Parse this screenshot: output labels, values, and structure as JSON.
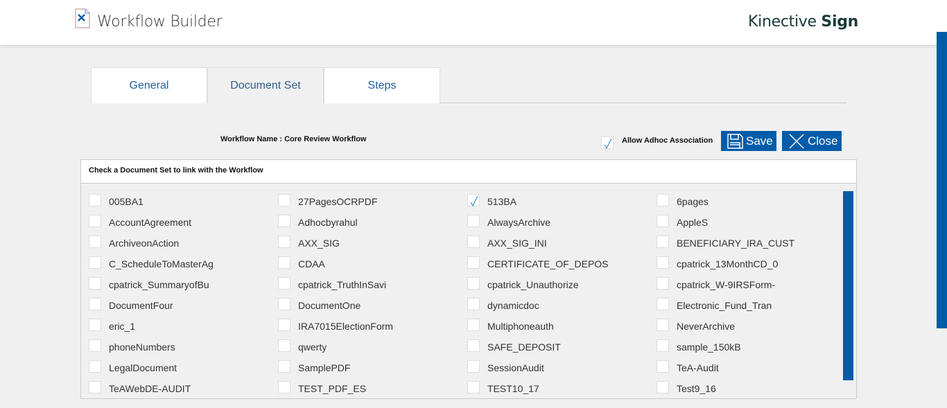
{
  "header": {
    "title": "Workflow Builder",
    "brand_regular": "Kinective",
    "brand_bold": "Sign"
  },
  "tabs": [
    {
      "label": "General"
    },
    {
      "label": "Document Set",
      "active": true
    },
    {
      "label": "Steps"
    }
  ],
  "workflow_name": "Workflow Name : Core Review Workflow",
  "adhoc": {
    "label": "Allow Adhoc Association",
    "checked": true
  },
  "buttons": {
    "save": "Save",
    "close": "Close"
  },
  "panel": {
    "heading": "Check a Document Set to link with the Workflow"
  },
  "colors": {
    "accent": "#005ca8",
    "check": "#3a8fd6"
  },
  "document_sets": [
    [
      "005BA1",
      "27PagesOCRPDF",
      "513BA",
      "6pages"
    ],
    [
      "AccountAgreement",
      "Adhocbyrahul",
      "AlwaysArchive",
      "AppleS"
    ],
    [
      "ArchiveonAction",
      "AXX_SIG",
      "AXX_SIG_INI",
      "BENEFICIARY_IRA_CUST"
    ],
    [
      "C_ScheduleToMasterAg",
      "CDAA",
      "CERTIFICATE_OF_DEPOS",
      "cpatrick_13MonthCD_0"
    ],
    [
      "cpatrick_SummaryofBu",
      "cpatrick_TruthInSavi",
      "cpatrick_Unauthorize",
      "cpatrick_W-9IRSForm-"
    ],
    [
      "DocumentFour",
      "DocumentOne",
      "dynamicdoc",
      "Electronic_Fund_Tran"
    ],
    [
      "eric_1",
      "IRA7015ElectionForm",
      "Multiphoneauth",
      "NeverArchive"
    ],
    [
      "phoneNumbers",
      "qwerty",
      "SAFE_DEPOSIT",
      "sample_150kB"
    ],
    [
      "LegalDocument",
      "SamplePDF",
      "SessionAudit",
      "TeA-Audit"
    ],
    [
      "TeAWebDE-AUDIT",
      "TEST_PDF_ES",
      "TEST10_17",
      "Test9_16"
    ]
  ],
  "checked_sets": [
    "513BA"
  ]
}
